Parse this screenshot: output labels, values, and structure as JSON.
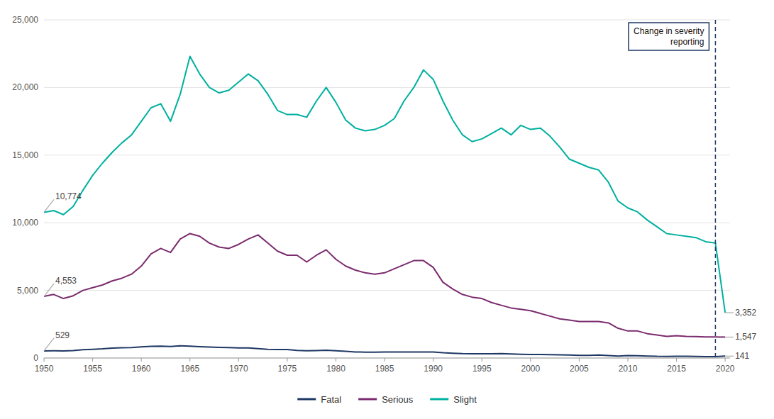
{
  "chart_data": {
    "type": "line",
    "x": [
      1950,
      1951,
      1952,
      1953,
      1954,
      1955,
      1956,
      1957,
      1958,
      1959,
      1960,
      1961,
      1962,
      1963,
      1964,
      1965,
      1966,
      1967,
      1968,
      1969,
      1970,
      1971,
      1972,
      1973,
      1974,
      1975,
      1976,
      1977,
      1978,
      1979,
      1980,
      1981,
      1982,
      1983,
      1984,
      1985,
      1986,
      1987,
      1988,
      1989,
      1990,
      1991,
      1992,
      1993,
      1994,
      1995,
      1996,
      1997,
      1998,
      1999,
      2000,
      2001,
      2002,
      2003,
      2004,
      2005,
      2006,
      2007,
      2008,
      2009,
      2010,
      2011,
      2012,
      2013,
      2014,
      2015,
      2016,
      2017,
      2018,
      2019,
      2020
    ],
    "series": [
      {
        "name": "Fatal",
        "color": "#1f3864",
        "values": [
          529,
          534,
          527,
          555,
          612,
          640,
          678,
          734,
          760,
          767,
          823,
          870,
          878,
          856,
          900,
          878,
          844,
          811,
          792,
          768,
          745,
          746,
          696,
          643,
          624,
          628,
          567,
          543,
          555,
          571,
          534,
          498,
          449,
          438,
          427,
          441,
          449,
          447,
          441,
          445,
          440,
          389,
          356,
          326,
          316,
          311,
          320,
          333,
          305,
          280,
          267,
          268,
          249,
          234,
          225,
          200,
          201,
          222,
          187,
          147,
          186,
          172,
          145,
          126,
          123,
          137,
          130,
          120,
          107,
          105,
          141
        ]
      },
      {
        "name": "Serious",
        "color": "#7b2c6e",
        "values": [
          4553,
          4700,
          4400,
          4600,
          5000,
          5200,
          5400,
          5700,
          5900,
          6200,
          6800,
          7700,
          8100,
          7800,
          8800,
          9200,
          9000,
          8500,
          8200,
          8100,
          8400,
          8800,
          9100,
          8500,
          7900,
          7600,
          7600,
          7100,
          7600,
          8000,
          7300,
          6800,
          6500,
          6300,
          6200,
          6300,
          6600,
          6900,
          7200,
          7200,
          6700,
          5600,
          5100,
          4700,
          4500,
          4400,
          4100,
          3900,
          3700,
          3600,
          3500,
          3300,
          3100,
          2900,
          2800,
          2700,
          2700,
          2700,
          2600,
          2200,
          2000,
          2000,
          1800,
          1700,
          1600,
          1650,
          1600,
          1580,
          1560,
          1560,
          1547
        ]
      },
      {
        "name": "Slight",
        "color": "#00b0a0",
        "values": [
          10774,
          10900,
          10600,
          11200,
          12400,
          13500,
          14400,
          15200,
          15900,
          16500,
          17500,
          18500,
          18800,
          17500,
          19500,
          22300,
          21000,
          20000,
          19600,
          19800,
          20400,
          21000,
          20500,
          19500,
          18300,
          18000,
          18000,
          17800,
          19000,
          20000,
          18900,
          17600,
          17000,
          16800,
          16900,
          17200,
          17700,
          19000,
          20000,
          21300,
          20600,
          19000,
          17600,
          16500,
          16000,
          16200,
          16600,
          17000,
          16500,
          17200,
          16900,
          17000,
          16400,
          15600,
          14700,
          14400,
          14100,
          13900,
          13000,
          11600,
          11100,
          10800,
          10200,
          9700,
          9200,
          9100,
          9000,
          8900,
          8600,
          8500,
          3352
        ]
      }
    ],
    "xlim": [
      1950,
      2020.5
    ],
    "xticks": [
      1950,
      1955,
      1960,
      1965,
      1970,
      1975,
      1980,
      1985,
      1990,
      1995,
      2000,
      2005,
      2010,
      2015,
      2020
    ],
    "ylim": [
      0,
      25000
    ],
    "yticks": [
      0,
      {
        "value": 5000,
        "label": "5,000"
      },
      {
        "value": 10000,
        "label": "10,000"
      },
      {
        "value": 15000,
        "label": "15,000"
      },
      {
        "value": 20000,
        "label": "20,000"
      },
      {
        "value": 25000,
        "label": "25,000"
      }
    ],
    "grid": true,
    "legend": "bottom",
    "annotations": [
      {
        "text": "Change in severity\nreporting",
        "x": 2019,
        "color": "#1f3864",
        "line_style": "dashed"
      },
      {
        "text": "10,774",
        "x": 1950,
        "y": 10774
      },
      {
        "text": "4,553",
        "x": 1950,
        "y": 4553
      },
      {
        "text": "529",
        "x": 1950,
        "y": 529
      },
      {
        "text": "3,352",
        "x": 2020,
        "y": 3352
      },
      {
        "text": "1,547",
        "x": 2020,
        "y": 1547
      },
      {
        "text": "141",
        "x": 2020,
        "y": 141
      }
    ]
  }
}
